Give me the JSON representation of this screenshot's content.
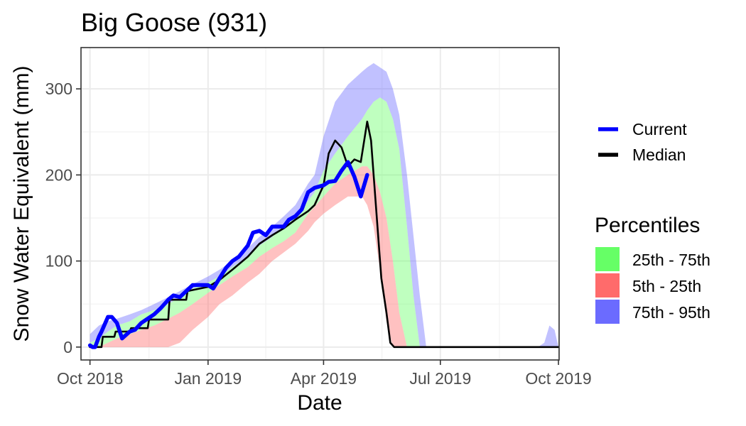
{
  "chart_data": {
    "type": "area",
    "title": "Big Goose (931)",
    "xlabel": "Date",
    "ylabel": "Snow Water Equivalent (mm)",
    "x_range": [
      "2018-09-24",
      "2019-10-01"
    ],
    "ylim": [
      -15,
      348
    ],
    "x_ticks": [
      {
        "date": "2018-10-01",
        "label": "Oct 2018"
      },
      {
        "date": "2019-01-01",
        "label": "Jan 2019"
      },
      {
        "date": "2019-04-01",
        "label": "Apr 2019"
      },
      {
        "date": "2019-07-01",
        "label": "Jul 2019"
      },
      {
        "date": "2019-10-01",
        "label": "Oct 2019"
      }
    ],
    "y_ticks": [
      {
        "value": 0,
        "label": "0"
      },
      {
        "value": 100,
        "label": "100"
      },
      {
        "value": 200,
        "label": "200"
      },
      {
        "value": 300,
        "label": "300"
      }
    ],
    "grid": true,
    "legend_placement": "right",
    "colors": {
      "current": "#0000ff",
      "median": "#000000",
      "band_25_75": "#66ff66",
      "band_5_25": "#ff6b6b",
      "band_75_95": "#6b6bff"
    },
    "legend_lines": [
      {
        "key": "current",
        "label": "Current"
      },
      {
        "key": "median",
        "label": "Median"
      }
    ],
    "legend_percentiles": {
      "title": "Percentiles",
      "items": [
        {
          "key": "band_25_75",
          "label": "25th - 75th"
        },
        {
          "key": "band_5_25",
          "label": "5th - 25th"
        },
        {
          "key": "band_75_95",
          "label": "75th - 95th"
        }
      ]
    },
    "bands": {
      "x": [
        "2018-10-01",
        "2018-10-08",
        "2018-10-15",
        "2018-10-22",
        "2018-11-01",
        "2018-11-10",
        "2018-11-20",
        "2018-12-01",
        "2018-12-10",
        "2018-12-20",
        "2019-01-01",
        "2019-01-10",
        "2019-01-20",
        "2019-02-01",
        "2019-02-10",
        "2019-02-20",
        "2019-03-01",
        "2019-03-10",
        "2019-03-20",
        "2019-03-25",
        "2019-04-01",
        "2019-04-10",
        "2019-04-20",
        "2019-05-01",
        "2019-05-05",
        "2019-05-10",
        "2019-05-15",
        "2019-05-20",
        "2019-05-25",
        "2019-05-30",
        "2019-06-05",
        "2019-06-10",
        "2019-06-15",
        "2019-06-20",
        "2019-06-25",
        "2019-06-30",
        "2019-07-05"
      ],
      "p5": [
        0,
        0,
        0,
        0,
        0,
        0,
        0,
        0,
        5,
        20,
        35,
        50,
        60,
        75,
        85,
        100,
        110,
        120,
        135,
        145,
        155,
        165,
        175,
        175,
        165,
        140,
        90,
        30,
        0,
        0,
        0,
        0,
        0,
        0,
        0,
        0,
        0
      ],
      "p25": [
        0,
        0,
        5,
        10,
        15,
        20,
        25,
        33,
        40,
        50,
        63,
        72,
        82,
        93,
        105,
        115,
        123,
        133,
        155,
        163,
        175,
        190,
        200,
        210,
        210,
        200,
        180,
        150,
        100,
        40,
        0,
        0,
        0,
        0,
        0,
        0,
        0
      ],
      "p75": [
        5,
        10,
        18,
        25,
        30,
        38,
        43,
        50,
        58,
        68,
        75,
        82,
        93,
        105,
        118,
        128,
        140,
        150,
        170,
        180,
        205,
        225,
        245,
        265,
        275,
        285,
        290,
        285,
        265,
        230,
        140,
        60,
        0,
        0,
        0,
        0,
        0
      ],
      "p95": [
        15,
        25,
        30,
        33,
        38,
        43,
        50,
        58,
        65,
        73,
        82,
        90,
        100,
        115,
        128,
        140,
        152,
        165,
        190,
        200,
        245,
        285,
        305,
        320,
        325,
        330,
        325,
        320,
        300,
        270,
        200,
        130,
        60,
        0,
        0,
        0,
        0
      ]
    },
    "current": {
      "x": [
        "2018-10-01",
        "2018-10-03",
        "2018-10-05",
        "2018-10-08",
        "2018-10-10",
        "2018-10-15",
        "2018-10-18",
        "2018-10-22",
        "2018-10-26",
        "2018-11-01",
        "2018-11-05",
        "2018-11-10",
        "2018-11-15",
        "2018-11-20",
        "2018-11-25",
        "2018-12-01",
        "2018-12-05",
        "2018-12-10",
        "2018-12-15",
        "2018-12-20",
        "2019-01-01",
        "2019-01-05",
        "2019-01-10",
        "2019-01-15",
        "2019-01-20",
        "2019-01-25",
        "2019-02-01",
        "2019-02-05",
        "2019-02-10",
        "2019-02-15",
        "2019-02-20",
        "2019-03-01",
        "2019-03-05",
        "2019-03-10",
        "2019-03-15",
        "2019-03-20",
        "2019-03-25",
        "2019-04-01",
        "2019-04-05",
        "2019-04-10",
        "2019-04-15",
        "2019-04-20",
        "2019-04-25",
        "2019-04-30",
        "2019-05-05"
      ],
      "y": [
        2,
        0,
        0,
        12,
        18,
        35,
        35,
        28,
        10,
        18,
        20,
        28,
        33,
        38,
        45,
        55,
        60,
        58,
        65,
        72,
        72,
        68,
        80,
        92,
        100,
        105,
        118,
        133,
        135,
        130,
        140,
        140,
        148,
        152,
        160,
        180,
        185,
        188,
        192,
        193,
        205,
        215,
        198,
        175,
        200
      ]
    },
    "median": {
      "x": [
        "2018-10-01",
        "2018-10-10",
        "2018-10-11",
        "2018-10-20",
        "2018-10-21",
        "2018-11-01",
        "2018-11-02",
        "2018-11-15",
        "2018-11-16",
        "2018-12-01",
        "2018-12-02",
        "2018-12-15",
        "2018-12-16",
        "2019-01-01",
        "2019-01-10",
        "2019-01-20",
        "2019-02-01",
        "2019-02-10",
        "2019-02-20",
        "2019-03-01",
        "2019-03-10",
        "2019-03-20",
        "2019-03-25",
        "2019-04-01",
        "2019-04-05",
        "2019-04-10",
        "2019-04-15",
        "2019-04-20",
        "2019-04-25",
        "2019-04-30",
        "2019-05-05",
        "2019-05-08",
        "2019-05-10",
        "2019-05-13",
        "2019-05-16",
        "2019-05-20",
        "2019-05-23",
        "2019-05-26",
        "2019-05-30",
        "2019-06-05",
        "2019-07-01",
        "2019-08-01",
        "2019-09-01",
        "2019-10-01"
      ],
      "y": [
        0,
        0,
        12,
        12,
        18,
        18,
        22,
        22,
        32,
        32,
        55,
        55,
        65,
        70,
        78,
        90,
        105,
        120,
        130,
        138,
        148,
        158,
        165,
        188,
        225,
        240,
        232,
        210,
        218,
        215,
        262,
        240,
        200,
        140,
        80,
        40,
        5,
        0,
        0,
        0,
        0,
        0,
        0,
        0
      ]
    },
    "late_p95_blip": {
      "x": [
        "2019-09-15",
        "2019-09-20",
        "2019-09-24",
        "2019-09-28",
        "2019-10-01"
      ],
      "y": [
        0,
        5,
        25,
        20,
        0
      ]
    }
  }
}
